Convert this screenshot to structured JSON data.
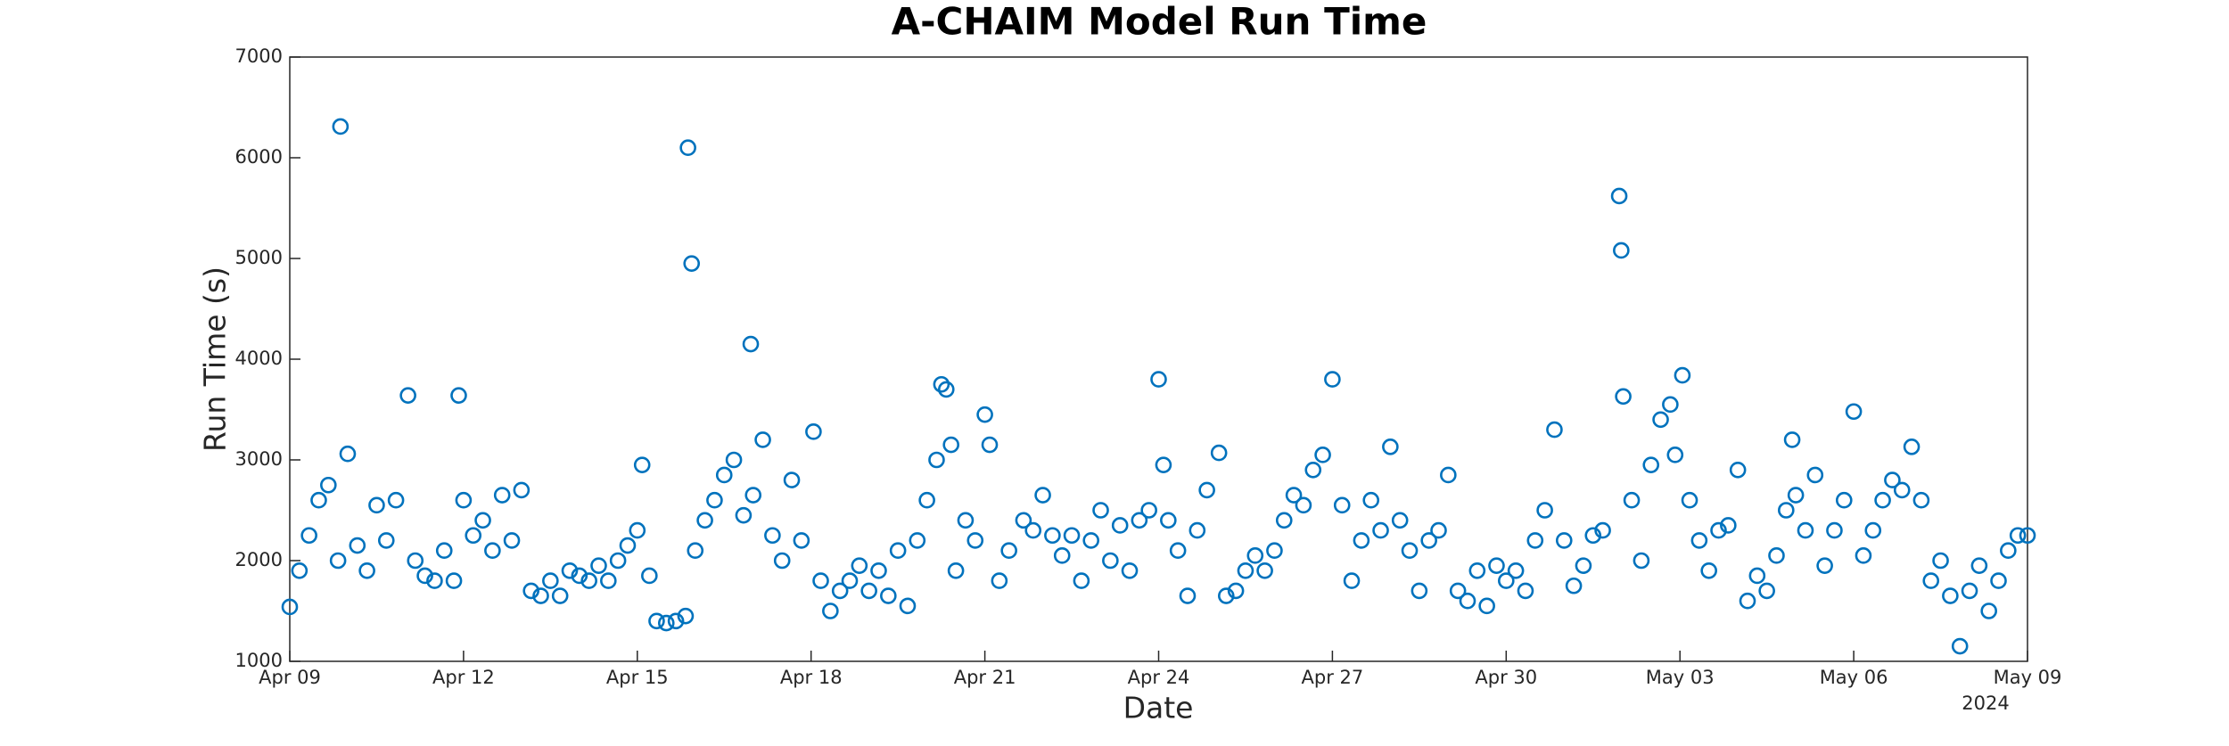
{
  "chart_data": {
    "type": "scatter",
    "title": "A-CHAIM Model Run Time",
    "x_label": "Date",
    "y_label": "Run Time (s)",
    "x_year_label": "2024",
    "color": "#0072bd",
    "xlim": [
      "2024-04-09 00:00",
      "2024-05-09 00:00"
    ],
    "xticks": [
      {
        "value": "2024-04-09 00:00",
        "label": "Apr 09"
      },
      {
        "value": "2024-04-12 00:00",
        "label": "Apr 12"
      },
      {
        "value": "2024-04-15 00:00",
        "label": "Apr 15"
      },
      {
        "value": "2024-04-18 00:00",
        "label": "Apr 18"
      },
      {
        "value": "2024-04-21 00:00",
        "label": "Apr 21"
      },
      {
        "value": "2024-04-24 00:00",
        "label": "Apr 24"
      },
      {
        "value": "2024-04-27 00:00",
        "label": "Apr 27"
      },
      {
        "value": "2024-04-30 00:00",
        "label": "Apr 30"
      },
      {
        "value": "2024-05-03 00:00",
        "label": "May 03"
      },
      {
        "value": "2024-05-06 00:00",
        "label": "May 06"
      },
      {
        "value": "2024-05-09 00:00",
        "label": "May 09"
      }
    ],
    "ylim": [
      1000,
      7000
    ],
    "yticks": [
      1000,
      2000,
      3000,
      4000,
      5000,
      6000,
      7000
    ],
    "x": [
      "2024-04-09 00:00",
      "2024-04-09 04:00",
      "2024-04-09 08:00",
      "2024-04-09 12:00",
      "2024-04-09 16:00",
      "2024-04-09 20:00",
      "2024-04-09 21:00",
      "2024-04-10 00:00",
      "2024-04-10 04:00",
      "2024-04-10 08:00",
      "2024-04-10 12:00",
      "2024-04-10 16:00",
      "2024-04-10 20:00",
      "2024-04-11 01:00",
      "2024-04-11 04:00",
      "2024-04-11 08:00",
      "2024-04-11 12:00",
      "2024-04-11 16:00",
      "2024-04-11 20:00",
      "2024-04-11 22:00",
      "2024-04-12 00:00",
      "2024-04-12 04:00",
      "2024-04-12 08:00",
      "2024-04-12 12:00",
      "2024-04-12 16:00",
      "2024-04-12 20:00",
      "2024-04-13 00:00",
      "2024-04-13 04:00",
      "2024-04-13 08:00",
      "2024-04-13 12:00",
      "2024-04-13 16:00",
      "2024-04-13 20:00",
      "2024-04-14 00:00",
      "2024-04-14 04:00",
      "2024-04-14 08:00",
      "2024-04-14 12:00",
      "2024-04-14 16:00",
      "2024-04-14 20:00",
      "2024-04-15 00:00",
      "2024-04-15 02:00",
      "2024-04-15 05:00",
      "2024-04-15 08:00",
      "2024-04-15 12:00",
      "2024-04-15 16:00",
      "2024-04-15 20:00",
      "2024-04-15 21:00",
      "2024-04-15 22:30",
      "2024-04-16 00:00",
      "2024-04-16 04:00",
      "2024-04-16 08:00",
      "2024-04-16 12:00",
      "2024-04-16 16:00",
      "2024-04-16 20:00",
      "2024-04-16 23:00",
      "2024-04-17 00:00",
      "2024-04-17 04:00",
      "2024-04-17 08:00",
      "2024-04-17 12:00",
      "2024-04-17 16:00",
      "2024-04-17 20:00",
      "2024-04-18 01:00",
      "2024-04-18 04:00",
      "2024-04-18 08:00",
      "2024-04-18 12:00",
      "2024-04-18 16:00",
      "2024-04-18 20:00",
      "2024-04-19 00:00",
      "2024-04-19 04:00",
      "2024-04-19 08:00",
      "2024-04-19 12:00",
      "2024-04-19 16:00",
      "2024-04-19 20:00",
      "2024-04-20 00:00",
      "2024-04-20 04:00",
      "2024-04-20 06:00",
      "2024-04-20 08:00",
      "2024-04-20 10:00",
      "2024-04-20 12:00",
      "2024-04-20 16:00",
      "2024-04-20 20:00",
      "2024-04-21 00:00",
      "2024-04-21 02:00",
      "2024-04-21 06:00",
      "2024-04-21 10:00",
      "2024-04-21 16:00",
      "2024-04-21 20:00",
      "2024-04-22 00:00",
      "2024-04-22 04:00",
      "2024-04-22 08:00",
      "2024-04-22 12:00",
      "2024-04-22 16:00",
      "2024-04-22 20:00",
      "2024-04-23 00:00",
      "2024-04-23 04:00",
      "2024-04-23 08:00",
      "2024-04-23 12:00",
      "2024-04-23 16:00",
      "2024-04-23 20:00",
      "2024-04-24 00:00",
      "2024-04-24 02:00",
      "2024-04-24 04:00",
      "2024-04-24 08:00",
      "2024-04-24 12:00",
      "2024-04-24 16:00",
      "2024-04-24 20:00",
      "2024-04-25 01:00",
      "2024-04-25 04:00",
      "2024-04-25 08:00",
      "2024-04-25 12:00",
      "2024-04-25 16:00",
      "2024-04-25 20:00",
      "2024-04-26 00:00",
      "2024-04-26 04:00",
      "2024-04-26 08:00",
      "2024-04-26 12:00",
      "2024-04-26 16:00",
      "2024-04-26 20:00",
      "2024-04-27 00:00",
      "2024-04-27 04:00",
      "2024-04-27 08:00",
      "2024-04-27 12:00",
      "2024-04-27 16:00",
      "2024-04-27 20:00",
      "2024-04-28 00:00",
      "2024-04-28 04:00",
      "2024-04-28 08:00",
      "2024-04-28 12:00",
      "2024-04-28 16:00",
      "2024-04-28 20:00",
      "2024-04-29 00:00",
      "2024-04-29 04:00",
      "2024-04-29 08:00",
      "2024-04-29 12:00",
      "2024-04-29 16:00",
      "2024-04-29 20:00",
      "2024-04-30 00:00",
      "2024-04-30 04:00",
      "2024-04-30 08:00",
      "2024-04-30 12:00",
      "2024-04-30 16:00",
      "2024-04-30 20:00",
      "2024-05-01 00:00",
      "2024-05-01 04:00",
      "2024-05-01 08:00",
      "2024-05-01 12:00",
      "2024-05-01 16:00",
      "2024-05-01 22:50",
      "2024-05-01 23:40",
      "2024-05-02 00:30",
      "2024-05-02 04:00",
      "2024-05-02 08:00",
      "2024-05-02 12:00",
      "2024-05-02 16:00",
      "2024-05-02 20:00",
      "2024-05-02 22:00",
      "2024-05-03 01:00",
      "2024-05-03 04:00",
      "2024-05-03 08:00",
      "2024-05-03 12:00",
      "2024-05-03 16:00",
      "2024-05-03 20:00",
      "2024-05-04 00:00",
      "2024-05-04 04:00",
      "2024-05-04 08:00",
      "2024-05-04 12:00",
      "2024-05-04 16:00",
      "2024-05-04 20:00",
      "2024-05-04 22:30",
      "2024-05-05 00:00",
      "2024-05-05 04:00",
      "2024-05-05 08:00",
      "2024-05-05 12:00",
      "2024-05-05 16:00",
      "2024-05-05 20:00",
      "2024-05-06 00:00",
      "2024-05-06 04:00",
      "2024-05-06 08:00",
      "2024-05-06 12:00",
      "2024-05-06 16:00",
      "2024-05-06 20:00",
      "2024-05-07 00:00",
      "2024-05-07 04:00",
      "2024-05-07 08:00",
      "2024-05-07 12:00",
      "2024-05-07 16:00",
      "2024-05-07 20:00",
      "2024-05-08 00:00",
      "2024-05-08 04:00",
      "2024-05-08 08:00",
      "2024-05-08 12:00",
      "2024-05-08 16:00",
      "2024-05-08 20:00",
      "2024-05-09 00:00"
    ],
    "values": [
      1540,
      1900,
      2250,
      2600,
      2750,
      2000,
      6310,
      3060,
      2150,
      1900,
      2550,
      2200,
      2600,
      3640,
      2000,
      1850,
      1800,
      2100,
      1800,
      3640,
      2600,
      2250,
      2400,
      2100,
      2650,
      2200,
      2700,
      1700,
      1650,
      1800,
      1650,
      1900,
      1850,
      1800,
      1950,
      1800,
      2000,
      2150,
      2300,
      2950,
      1850,
      1400,
      1380,
      1400,
      1450,
      6100,
      4950,
      2100,
      2400,
      2600,
      2850,
      3000,
      2450,
      4150,
      2650,
      3200,
      2250,
      2000,
      2800,
      2200,
      3280,
      1800,
      1500,
      1700,
      1800,
      1950,
      1700,
      1900,
      1650,
      2100,
      1550,
      2200,
      2600,
      3000,
      3750,
      3700,
      3150,
      1900,
      2400,
      2200,
      3450,
      3150,
      1800,
      2100,
      2400,
      2300,
      2650,
      2250,
      2050,
      2250,
      1800,
      2200,
      2500,
      2000,
      2350,
      1900,
      2400,
      2500,
      3800,
      2950,
      2400,
      2100,
      1650,
      2300,
      2700,
      3070,
      1650,
      1700,
      1900,
      2050,
      1900,
      2100,
      2400,
      2650,
      2550,
      2900,
      3050,
      3800,
      2550,
      1800,
      2200,
      2600,
      2300,
      3130,
      2400,
      2100,
      1700,
      2200,
      2300,
      2850,
      1700,
      1600,
      1900,
      1550,
      1950,
      1800,
      1900,
      1700,
      2200,
      2500,
      3300,
      2200,
      1750,
      1950,
      2250,
      2300,
      5620,
      5080,
      3630,
      2600,
      2000,
      2950,
      3400,
      3550,
      3050,
      3840,
      2600,
      2200,
      1900,
      2300,
      2350,
      2900,
      1600,
      1850,
      1700,
      2050,
      2500,
      3200,
      2650,
      2300,
      2850,
      1950,
      2300,
      2600,
      3480,
      2050,
      2300,
      2600,
      2800,
      2700,
      3130,
      2600,
      1800,
      2000,
      1650,
      1150,
      1700,
      1950,
      1500,
      1800,
      2100,
      2250,
      2250
    ]
  }
}
